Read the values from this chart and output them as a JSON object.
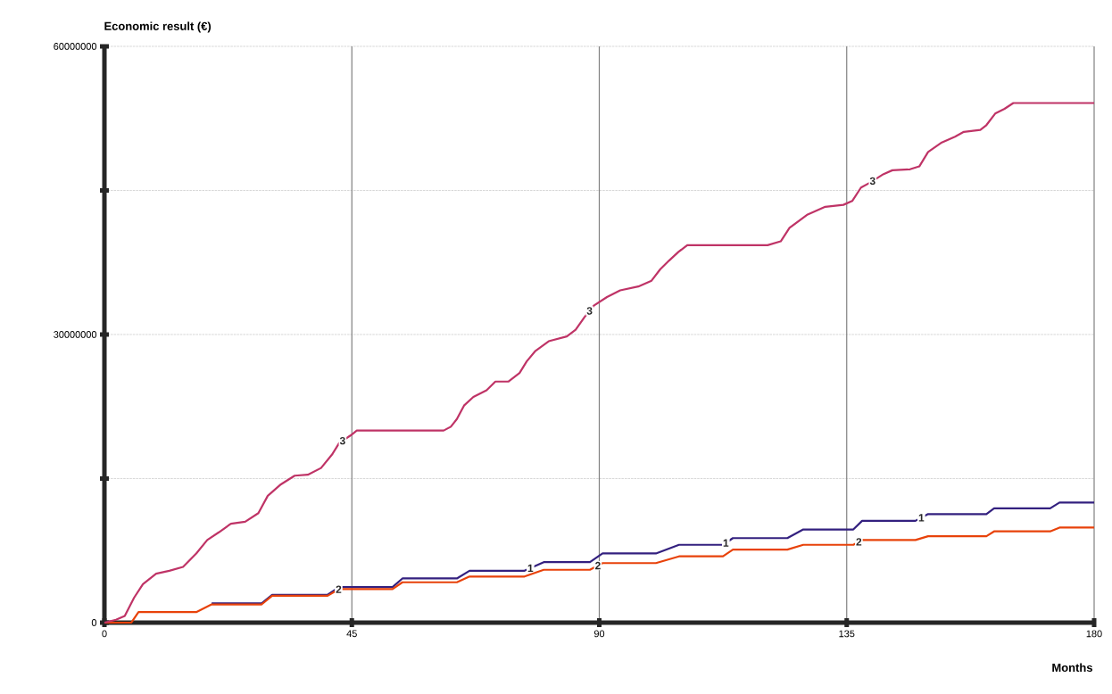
{
  "chart_data": {
    "type": "line",
    "xlabel": "Months",
    "ylabel": "Economic result (€)",
    "xlim": [
      0,
      180
    ],
    "xticks": [
      0,
      45,
      90,
      135,
      180
    ],
    "ylim": [
      0,
      60000000
    ],
    "yticks": [
      0,
      {
        "value": 15000000,
        "label": null
      },
      30000000,
      {
        "value": 45000000,
        "label": null
      },
      60000000
    ],
    "grid": true,
    "legend": false,
    "marker": "none",
    "line_style": "solid",
    "series": [
      {
        "name": "1",
        "color": "#33207f",
        "x": [
          19.5,
          28.6,
          30.5,
          40.6,
          42.7,
          52.4,
          54.2,
          64.1,
          66.4,
          76.4,
          79.9,
          88.3,
          90.6,
          100.3,
          104.5,
          112.5,
          114.3,
          124.2,
          127.1,
          136.2,
          137.8,
          147.5,
          149.8,
          160.4,
          161.8,
          172,
          173.7,
          180
        ],
        "values": [
          2000000,
          2000000,
          2900000,
          2900000,
          3700000,
          3700000,
          4600000,
          4600000,
          5400000,
          5400000,
          6300000,
          6300000,
          7200000,
          7200000,
          8100000,
          8100000,
          8800000,
          8800000,
          9700000,
          9700000,
          10600000,
          10600000,
          11300000,
          11300000,
          11900000,
          11900000,
          12500000,
          12500000
        ]
      },
      {
        "name": "2",
        "color": "#e8420a",
        "x": [
          0,
          4.9,
          6.2,
          16.7,
          19.5,
          28.6,
          30.5,
          40.6,
          42.7,
          52.4,
          54.2,
          64.1,
          66.4,
          76.4,
          79.9,
          88.3,
          90.6,
          100.3,
          104.5,
          112.5,
          114.3,
          124.2,
          127.1,
          136.2,
          137.8,
          147.5,
          149.8,
          160.4,
          161.8,
          172,
          173.7,
          180
        ],
        "values": [
          0,
          0,
          1100000,
          1100000,
          1900000,
          1900000,
          2800000,
          2800000,
          3500000,
          3500000,
          4200000,
          4200000,
          4800000,
          4800000,
          5500000,
          5500000,
          6200000,
          6200000,
          6900000,
          6900000,
          7600000,
          7600000,
          8100000,
          8100000,
          8600000,
          8600000,
          9000000,
          9000000,
          9500000,
          9500000,
          9900000,
          9900000
        ]
      },
      {
        "name": "3",
        "color": "#bf3366",
        "x": [
          0,
          2.1,
          3.7,
          5.4,
          7,
          9.4,
          11.8,
          14.3,
          16.7,
          18.7,
          20.8,
          23,
          25.6,
          28,
          29.7,
          32.1,
          34.6,
          37,
          39.4,
          41.4,
          42.7,
          44.8,
          45.9,
          61.7,
          63,
          64.1,
          65.4,
          67.1,
          69.5,
          71.1,
          73.5,
          75.5,
          76.8,
          78.4,
          80.8,
          84.1,
          85.7,
          87.3,
          89,
          91.4,
          93.8,
          97.1,
          99.5,
          101.1,
          102.7,
          104.4,
          106,
          120.6,
          123,
          124.6,
          127.9,
          131.1,
          134.4,
          136,
          137.6,
          139.2,
          141.7,
          143.3,
          146.5,
          148.2,
          149.8,
          152.3,
          154.7,
          156.3,
          159.3,
          160.4,
          162,
          163.7,
          165.3,
          180
        ],
        "values": [
          0,
          300000,
          700000,
          2600000,
          4000000,
          5100000,
          5400000,
          5800000,
          7200000,
          8600000,
          9400000,
          10300000,
          10500000,
          11400000,
          13200000,
          14400000,
          15300000,
          15400000,
          16100000,
          17500000,
          18700000,
          19500000,
          20000000,
          20000000,
          20400000,
          21200000,
          22600000,
          23500000,
          24200000,
          25100000,
          25100000,
          26000000,
          27200000,
          28300000,
          29300000,
          29800000,
          30500000,
          31800000,
          33000000,
          33900000,
          34600000,
          35000000,
          35600000,
          36800000,
          37700000,
          38600000,
          39300000,
          39300000,
          39700000,
          41100000,
          42500000,
          43300000,
          43500000,
          43900000,
          45300000,
          45800000,
          46700000,
          47100000,
          47200000,
          47500000,
          49000000,
          50000000,
          50600000,
          51100000,
          51300000,
          51800000,
          53000000,
          53500000,
          54100000,
          54100000
        ]
      }
    ]
  }
}
